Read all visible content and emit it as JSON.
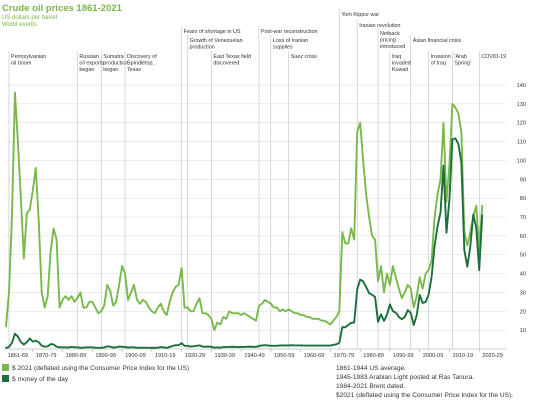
{
  "header": {
    "title": "Crude oil prices 1861-2021",
    "subtitle_1": "US dollars per barrel",
    "subtitle_2": "World events"
  },
  "colors": {
    "real": "#79b94b",
    "nominal": "#1e6e3c",
    "title": "#7ab648"
  },
  "events": [
    {
      "year": 1862,
      "lines": [
        "Pennsylvanian",
        "oil boom"
      ]
    },
    {
      "year": 1885,
      "lines": [
        "Russian",
        "oil exports",
        "began"
      ]
    },
    {
      "year": 1893,
      "lines": [
        "Sumatra",
        "production",
        "began"
      ]
    },
    {
      "year": 1901,
      "lines": [
        "Discovery of",
        "Spindletop,",
        "Texas"
      ]
    },
    {
      "year": 1920,
      "lines": [
        "Fears of shortage in US"
      ]
    },
    {
      "year": 1922,
      "lines": [
        "Growth of Venezuelan",
        "production"
      ]
    },
    {
      "year": 1930,
      "lines": [
        "East Texas field",
        "discovered"
      ]
    },
    {
      "year": 1946,
      "lines": [
        "Post-war reconstruction"
      ]
    },
    {
      "year": 1950,
      "lines": [
        "Loss of Iranian",
        "supplies"
      ]
    },
    {
      "year": 1956,
      "lines": [
        "Suez crisis"
      ]
    },
    {
      "year": 1973,
      "lines": [
        "Yom Kippur war"
      ]
    },
    {
      "year": 1979,
      "lines": [
        "Iranian revolution"
      ]
    },
    {
      "year": 1986,
      "lines": [
        "Netback",
        "pricing",
        "introduced"
      ]
    },
    {
      "year": 1990,
      "lines": [
        "Iraq",
        "invaded",
        "Kuwait"
      ]
    },
    {
      "year": 1997,
      "lines": [
        "Asian financial crisis"
      ]
    },
    {
      "year": 2003,
      "lines": [
        "Invasion",
        "of Iraq"
      ]
    },
    {
      "year": 2011,
      "lines": [
        "'Arab",
        "Spring'"
      ]
    },
    {
      "year": 2020,
      "lines": [
        "COVID-19"
      ]
    }
  ],
  "legend": [
    {
      "label": "$ 2021 (deflated using the Consumer Price Index for the US)",
      "series": "real"
    },
    {
      "label": "$ money of the day",
      "series": "nominal"
    }
  ],
  "notes": [
    "1861-1944 US average.",
    "1945-1983 Arabian Light posted at Ras Tanura.",
    "1984-2021 Brent dated.",
    "$2021 (deflated using the Consumer Price Index for the US)."
  ],
  "chart_data": {
    "type": "line",
    "title": "Crude oil prices 1861-2021",
    "ylabel": "US dollars per barrel",
    "xlim": [
      1861,
      2029
    ],
    "ylim": [
      0,
      140
    ],
    "yticks": [
      10,
      20,
      30,
      40,
      50,
      60,
      70,
      80,
      90,
      100,
      110,
      120,
      130,
      140
    ],
    "xtick_labels": [
      "1861-69",
      "1870-79",
      "1880-89",
      "1890-99",
      "1900-09",
      "1910-19",
      "1920-29",
      "1930-39",
      "1940-49",
      "1950-59",
      "1960-69",
      "1970-79",
      "1980-89",
      "1990-99",
      "2000-09",
      "2010-19",
      "2020-29"
    ],
    "grid": true,
    "legend_position": "bottom-left",
    "series": [
      {
        "name": "$ 2021 (deflated using the Consumer Price Index for the US)",
        "color": "#79b94b",
        "x": [
          1861,
          1862,
          1863,
          1864,
          1865,
          1866,
          1867,
          1868,
          1869,
          1870,
          1871,
          1872,
          1873,
          1874,
          1875,
          1876,
          1877,
          1878,
          1879,
          1880,
          1881,
          1882,
          1883,
          1884,
          1885,
          1886,
          1887,
          1888,
          1889,
          1890,
          1891,
          1892,
          1893,
          1894,
          1895,
          1896,
          1897,
          1898,
          1899,
          1900,
          1901,
          1902,
          1903,
          1904,
          1905,
          1906,
          1907,
          1908,
          1909,
          1910,
          1911,
          1912,
          1913,
          1914,
          1915,
          1916,
          1917,
          1918,
          1919,
          1920,
          1921,
          1922,
          1923,
          1924,
          1925,
          1926,
          1927,
          1928,
          1929,
          1930,
          1931,
          1932,
          1933,
          1934,
          1935,
          1936,
          1937,
          1938,
          1939,
          1940,
          1941,
          1942,
          1943,
          1944,
          1945,
          1946,
          1947,
          1948,
          1949,
          1950,
          1951,
          1952,
          1953,
          1954,
          1955,
          1956,
          1957,
          1958,
          1959,
          1960,
          1961,
          1962,
          1963,
          1964,
          1965,
          1966,
          1967,
          1968,
          1969,
          1970,
          1971,
          1972,
          1973,
          1974,
          1975,
          1976,
          1977,
          1978,
          1979,
          1980,
          1981,
          1982,
          1983,
          1984,
          1985,
          1986,
          1987,
          1988,
          1989,
          1990,
          1991,
          1992,
          1993,
          1994,
          1995,
          1996,
          1997,
          1998,
          1999,
          2000,
          2001,
          2002,
          2003,
          2004,
          2005,
          2006,
          2007,
          2008,
          2009,
          2010,
          2011,
          2012,
          2013,
          2014,
          2015,
          2016,
          2017,
          2018,
          2019,
          2020,
          2021
        ],
        "y": [
          12,
          30,
          70,
          136,
          110,
          80,
          48,
          72,
          74,
          84,
          96,
          68,
          30,
          22,
          28,
          52,
          64,
          58,
          22,
          26,
          28,
          26,
          28,
          25,
          27,
          30,
          22,
          22,
          25,
          25,
          22,
          19,
          20,
          23,
          34,
          31,
          23,
          25,
          34,
          44,
          40,
          26,
          30,
          34,
          26,
          24,
          26,
          25,
          22,
          20,
          19,
          22,
          24,
          20,
          18,
          25,
          30,
          33,
          34,
          43,
          22,
          22,
          20,
          20,
          24,
          27,
          19,
          19,
          18,
          16,
          10,
          14,
          13,
          17,
          16,
          20,
          19,
          19,
          19,
          18,
          19,
          18,
          17,
          16,
          15,
          23,
          24,
          26,
          25,
          24,
          22,
          22,
          20,
          21,
          20,
          21,
          20,
          19,
          19,
          18,
          18,
          17,
          17,
          16,
          16,
          16,
          15,
          15,
          14,
          13,
          15,
          17,
          20,
          62,
          56,
          56,
          64,
          58,
          115,
          120,
          100,
          82,
          70,
          60,
          58,
          36,
          44,
          30,
          40,
          34,
          44,
          38,
          32,
          27,
          30,
          34,
          32,
          22,
          28,
          38,
          32,
          40,
          42,
          47,
          70,
          82,
          90,
          120,
          78,
          98,
          130,
          128,
          125,
          115,
          62,
          55,
          62,
          70,
          76,
          52,
          76
        ]
      },
      {
        "name": "$ money of the day",
        "color": "#1e6e3c",
        "x": [
          1861,
          1862,
          1863,
          1864,
          1865,
          1866,
          1867,
          1868,
          1869,
          1870,
          1871,
          1872,
          1873,
          1874,
          1875,
          1876,
          1877,
          1878,
          1879,
          1880,
          1881,
          1882,
          1883,
          1884,
          1885,
          1886,
          1887,
          1888,
          1889,
          1890,
          1891,
          1892,
          1893,
          1894,
          1895,
          1896,
          1897,
          1898,
          1899,
          1900,
          1901,
          1902,
          1903,
          1904,
          1905,
          1906,
          1907,
          1908,
          1909,
          1910,
          1911,
          1912,
          1913,
          1914,
          1915,
          1916,
          1917,
          1918,
          1919,
          1920,
          1921,
          1922,
          1923,
          1924,
          1925,
          1926,
          1927,
          1928,
          1929,
          1930,
          1931,
          1932,
          1933,
          1934,
          1935,
          1936,
          1937,
          1938,
          1939,
          1940,
          1941,
          1942,
          1943,
          1944,
          1945,
          1946,
          1947,
          1948,
          1949,
          1950,
          1951,
          1952,
          1953,
          1954,
          1955,
          1956,
          1957,
          1958,
          1959,
          1960,
          1961,
          1962,
          1963,
          1964,
          1965,
          1966,
          1967,
          1968,
          1969,
          1970,
          1971,
          1972,
          1973,
          1974,
          1975,
          1976,
          1977,
          1978,
          1979,
          1980,
          1981,
          1982,
          1983,
          1984,
          1985,
          1986,
          1987,
          1988,
          1989,
          1990,
          1991,
          1992,
          1993,
          1994,
          1995,
          1996,
          1997,
          1998,
          1999,
          2000,
          2001,
          2002,
          2003,
          2004,
          2005,
          2006,
          2007,
          2008,
          2009,
          2010,
          2011,
          2012,
          2013,
          2014,
          2015,
          2016,
          2017,
          2018,
          2019,
          2020,
          2021
        ],
        "y": [
          0.5,
          1.1,
          3.2,
          8.1,
          6.6,
          3.7,
          2.4,
          3.6,
          5.6,
          3.9,
          4.4,
          3.6,
          1.8,
          1.2,
          1.4,
          2.6,
          2.4,
          1.2,
          0.9,
          0.9,
          0.9,
          0.8,
          1.1,
          0.9,
          0.9,
          0.7,
          0.7,
          0.9,
          0.9,
          0.9,
          0.7,
          0.6,
          0.6,
          0.8,
          1.4,
          1.2,
          0.8,
          0.9,
          1.3,
          1.2,
          1.0,
          0.8,
          0.9,
          0.9,
          0.6,
          0.7,
          0.7,
          0.7,
          0.6,
          0.6,
          0.6,
          0.7,
          1.0,
          0.8,
          0.6,
          1.1,
          1.6,
          2.0,
          2.0,
          3.1,
          1.7,
          1.6,
          1.3,
          1.4,
          1.7,
          1.9,
          1.3,
          1.2,
          1.3,
          1.2,
          0.7,
          0.9,
          0.7,
          1.0,
          1.0,
          1.1,
          1.2,
          1.1,
          1.0,
          1.0,
          1.1,
          1.2,
          1.2,
          1.2,
          1.1,
          1.6,
          1.9,
          2.0,
          1.9,
          1.7,
          1.7,
          1.7,
          1.9,
          1.9,
          1.9,
          1.9,
          2.0,
          1.9,
          1.9,
          1.9,
          1.8,
          1.8,
          1.8,
          1.8,
          1.8,
          1.8,
          1.8,
          1.8,
          1.8,
          1.8,
          2.2,
          2.5,
          3.3,
          11.6,
          11.5,
          12.8,
          13.9,
          14.0,
          31.6,
          36.8,
          35.9,
          32.9,
          29.6,
          28.8,
          27.6,
          14.4,
          18.4,
          14.9,
          18.2,
          23.7,
          20.0,
          19.3,
          17.0,
          15.8,
          17.0,
          20.6,
          19.1,
          12.7,
          17.9,
          28.7,
          24.4,
          25.0,
          28.8,
          38.3,
          54.5,
          65.1,
          72.4,
          97.3,
          61.7,
          79.5,
          111.3,
          111.7,
          108.7,
          99.0,
          52.4,
          43.7,
          54.2,
          71.3,
          64.2,
          41.8,
          70.9
        ]
      }
    ]
  }
}
